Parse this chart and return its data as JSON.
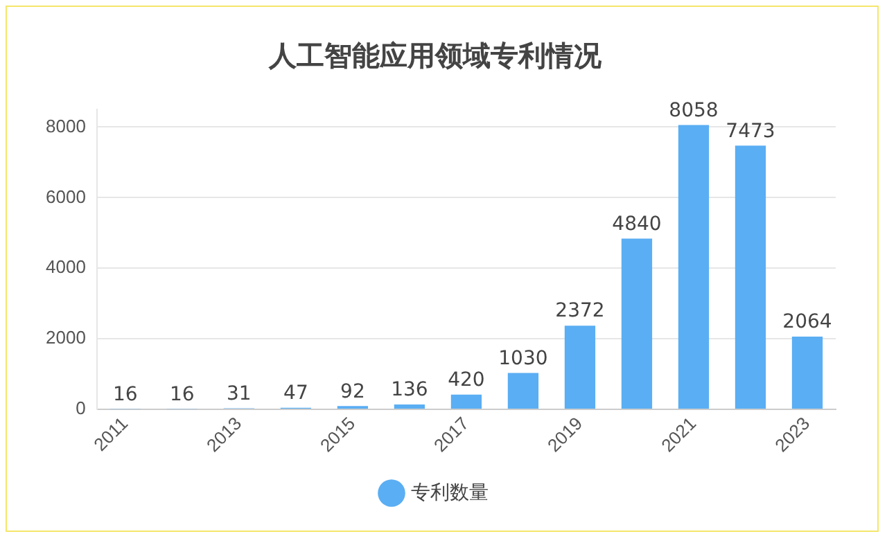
{
  "chart_data": {
    "type": "bar",
    "title": "人工智能应用领域专利情况",
    "categories": [
      "2011",
      null,
      "2013",
      null,
      "2015",
      null,
      "2017",
      null,
      "2019",
      null,
      "2021",
      null,
      "2023"
    ],
    "series": [
      {
        "name": "专利数量",
        "color": "#5aaef3",
        "values": [
          16,
          16,
          31,
          47,
          92,
          136,
          420,
          1030,
          2372,
          4840,
          8058,
          7473,
          2064
        ]
      }
    ],
    "ylim": [
      0,
      8500
    ],
    "yticks": [
      0,
      2000,
      4000,
      6000,
      8000
    ],
    "grid": "y",
    "legend": "bottom",
    "data_labels": true
  }
}
